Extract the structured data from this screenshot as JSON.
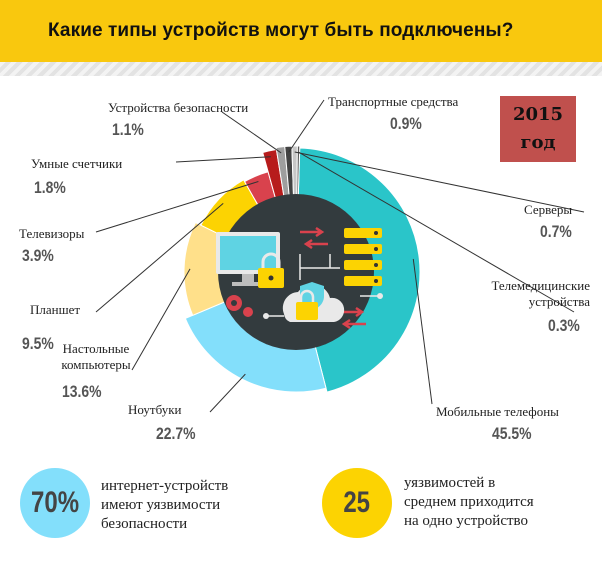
{
  "header": {
    "title": "Какие типы устройств могут быть подключены?"
  },
  "year_badge": {
    "line1": "2015",
    "line2": "год"
  },
  "colors": {
    "header": "#f9c80e",
    "mobile": "#2ac5c9",
    "laptops": "#83dffb",
    "desktops": "#ffe08a",
    "tablets": "#fcd302",
    "tv": "#d9424d",
    "meters": "#b71c1c",
    "security": "#9e9e9e",
    "transport": "#424242",
    "servers": "#c7c7c7",
    "telemedicine": "#5a5a5a",
    "inner": "#333b3e"
  },
  "chart_data": {
    "type": "pie",
    "title": "Какие типы устройств могут быть подключены?",
    "year": "2015 год",
    "unit": "%",
    "slices": [
      {
        "label": "Мобильные телефоны",
        "value": 45.5,
        "display": "45.5%"
      },
      {
        "label": "Ноутбуки",
        "value": 22.7,
        "display": "22.7%"
      },
      {
        "label": "Настольные компьютеры",
        "value": 13.6,
        "display": "13.6%"
      },
      {
        "label": "Планшет",
        "value": 9.5,
        "display": "9.5%"
      },
      {
        "label": "Телевизоры",
        "value": 3.9,
        "display": "3.9%"
      },
      {
        "label": "Умные счетчики",
        "value": 1.8,
        "display": "1.8%"
      },
      {
        "label": "Устройства безопасности",
        "value": 1.1,
        "display": "1.1%"
      },
      {
        "label": "Транспортные средства",
        "value": 0.9,
        "display": "0.9%"
      },
      {
        "label": "Серверы",
        "value": 0.7,
        "display": "0.7%"
      },
      {
        "label": "Телемедицинские устройства",
        "value": 0.3,
        "display": "0.3%"
      }
    ]
  },
  "stats": [
    {
      "value": "70%",
      "text_lines": [
        "интернет-устройств",
        "имеют уязвимости",
        "безопасности"
      ],
      "color": "#83dffb"
    },
    {
      "value": "25",
      "text_lines": [
        "уязвимостей в",
        "среднем приходится",
        "на одно устройство"
      ],
      "color": "#fcd302"
    }
  ]
}
